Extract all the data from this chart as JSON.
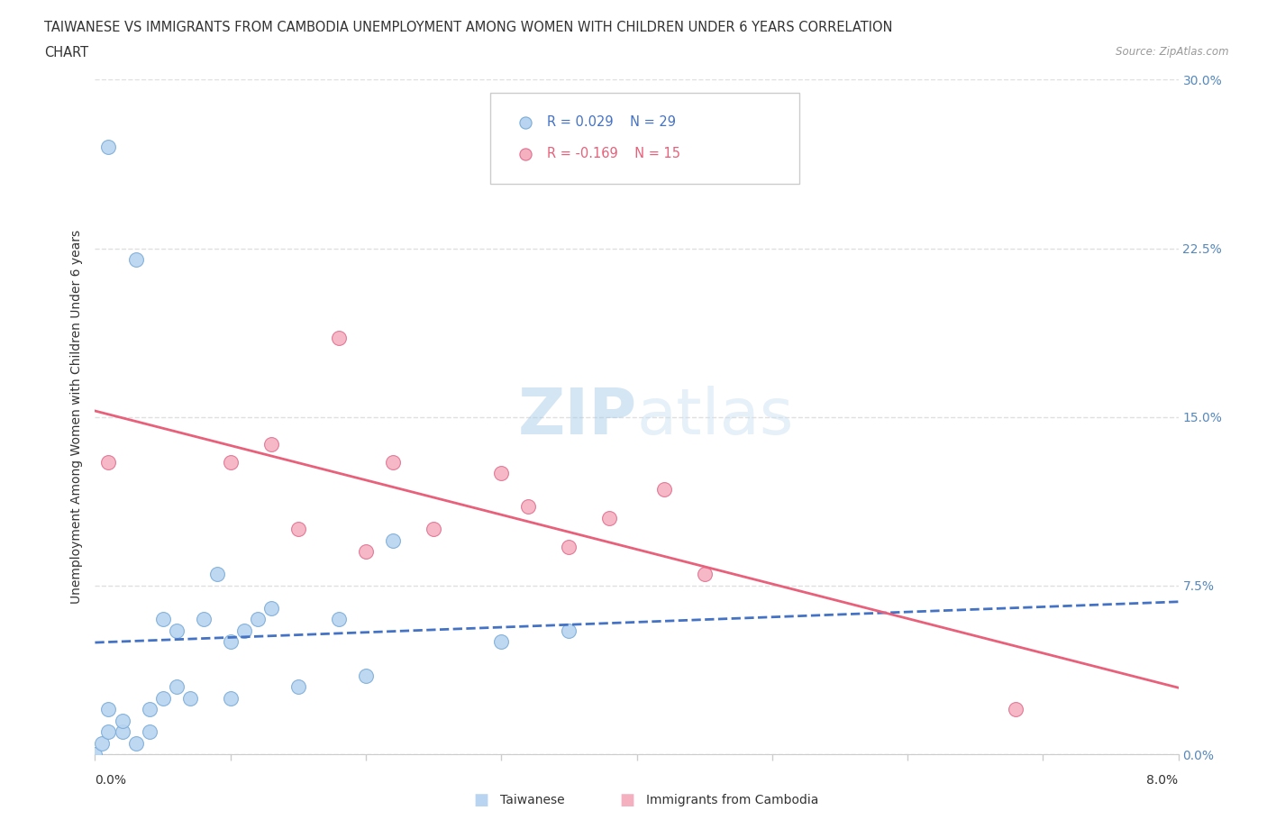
{
  "title_line1": "TAIWANESE VS IMMIGRANTS FROM CAMBODIA UNEMPLOYMENT AMONG WOMEN WITH CHILDREN UNDER 6 YEARS CORRELATION",
  "title_line2": "CHART",
  "source": "Source: ZipAtlas.com",
  "legend_blue_r": "R = 0.029",
  "legend_blue_n": "N = 29",
  "legend_pink_r": "R = -0.169",
  "legend_pink_n": "N = 15",
  "blue_fill": "#b8d4f0",
  "blue_edge": "#7aacd8",
  "blue_line": "#4472c4",
  "pink_fill": "#f5b0c0",
  "pink_edge": "#e07090",
  "pink_line": "#e8607a",
  "blue_scatter_x": [
    0.0,
    0.0005,
    0.001,
    0.001,
    0.001,
    0.002,
    0.002,
    0.003,
    0.003,
    0.004,
    0.004,
    0.005,
    0.005,
    0.006,
    0.006,
    0.007,
    0.008,
    0.009,
    0.01,
    0.01,
    0.011,
    0.012,
    0.013,
    0.015,
    0.018,
    0.02,
    0.022,
    0.03,
    0.035
  ],
  "blue_scatter_y": [
    0.0,
    0.005,
    0.01,
    0.02,
    0.27,
    0.01,
    0.015,
    0.005,
    0.22,
    0.01,
    0.02,
    0.025,
    0.06,
    0.03,
    0.055,
    0.025,
    0.06,
    0.08,
    0.025,
    0.05,
    0.055,
    0.06,
    0.065,
    0.03,
    0.06,
    0.035,
    0.095,
    0.05,
    0.055
  ],
  "pink_scatter_x": [
    0.001,
    0.01,
    0.013,
    0.015,
    0.018,
    0.02,
    0.022,
    0.025,
    0.03,
    0.032,
    0.035,
    0.038,
    0.042,
    0.045,
    0.068
  ],
  "pink_scatter_y": [
    0.13,
    0.13,
    0.138,
    0.1,
    0.185,
    0.09,
    0.13,
    0.1,
    0.125,
    0.11,
    0.092,
    0.105,
    0.118,
    0.08,
    0.02
  ],
  "xlim": [
    0.0,
    0.08
  ],
  "ylim": [
    0.0,
    0.3
  ],
  "xtick_vals": [
    0.0,
    0.01,
    0.02,
    0.03,
    0.04,
    0.05,
    0.06,
    0.07,
    0.08
  ],
  "ytick_vals": [
    0.0,
    0.075,
    0.15,
    0.225,
    0.3
  ],
  "ytick_labels": [
    "0.0%",
    "7.5%",
    "15.0%",
    "22.5%",
    "30.0%"
  ],
  "xtick_left_label": "0.0%",
  "xtick_right_label": "8.0%",
  "ylabel": "Unemployment Among Women with Children Under 6 years",
  "legend_taiwanese": "Taiwanese",
  "legend_cambodia": "Immigrants from Cambodia",
  "watermark_zip": "ZIP",
  "watermark_atlas": "atlas",
  "grid_color": "#e0e0e0",
  "text_color": "#333333",
  "axis_label_color": "#5588bb"
}
